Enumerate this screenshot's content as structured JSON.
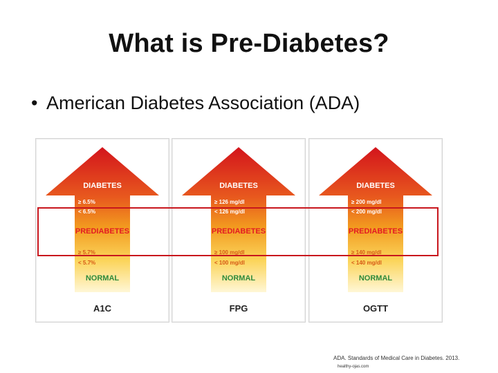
{
  "slide": {
    "title": "What is Pre-Diabetes?",
    "bullet": "American Diabetes Association (ADA)"
  },
  "levels": {
    "diabetes": "DIABETES",
    "prediabetes": "PREDIABETES",
    "normal": "NORMAL"
  },
  "colors": {
    "arrow_top": "#d3141c",
    "arrow_mid": "#f29a1f",
    "arrow_bottom": "#fff0b0",
    "normal_label": "#2e8a3a",
    "highlight_border": "#c8161d"
  },
  "panels": [
    {
      "test": "A1C",
      "diabetes_threshold": "≥ 6.5%",
      "prediabetes_upper": "< 6.5%",
      "prediabetes_lower": "≥ 5.7%",
      "normal_threshold": "< 5.7%"
    },
    {
      "test": "FPG",
      "diabetes_threshold": "≥ 126 mg/dl",
      "prediabetes_upper": "< 126 mg/dl",
      "prediabetes_lower": "≥ 100 mg/dl",
      "normal_threshold": "< 100 mg/dl"
    },
    {
      "test": "OGTT",
      "diabetes_threshold": "≥ 200 mg/dl",
      "prediabetes_upper": "< 200 mg/dl",
      "prediabetes_lower": "≥ 140 mg/dl",
      "normal_threshold": "< 140 mg/dl"
    }
  ],
  "citation": {
    "text": "ADA. Standards of Medical Care in Diabetes. 2013.",
    "source": "healthy-ojas.com"
  }
}
